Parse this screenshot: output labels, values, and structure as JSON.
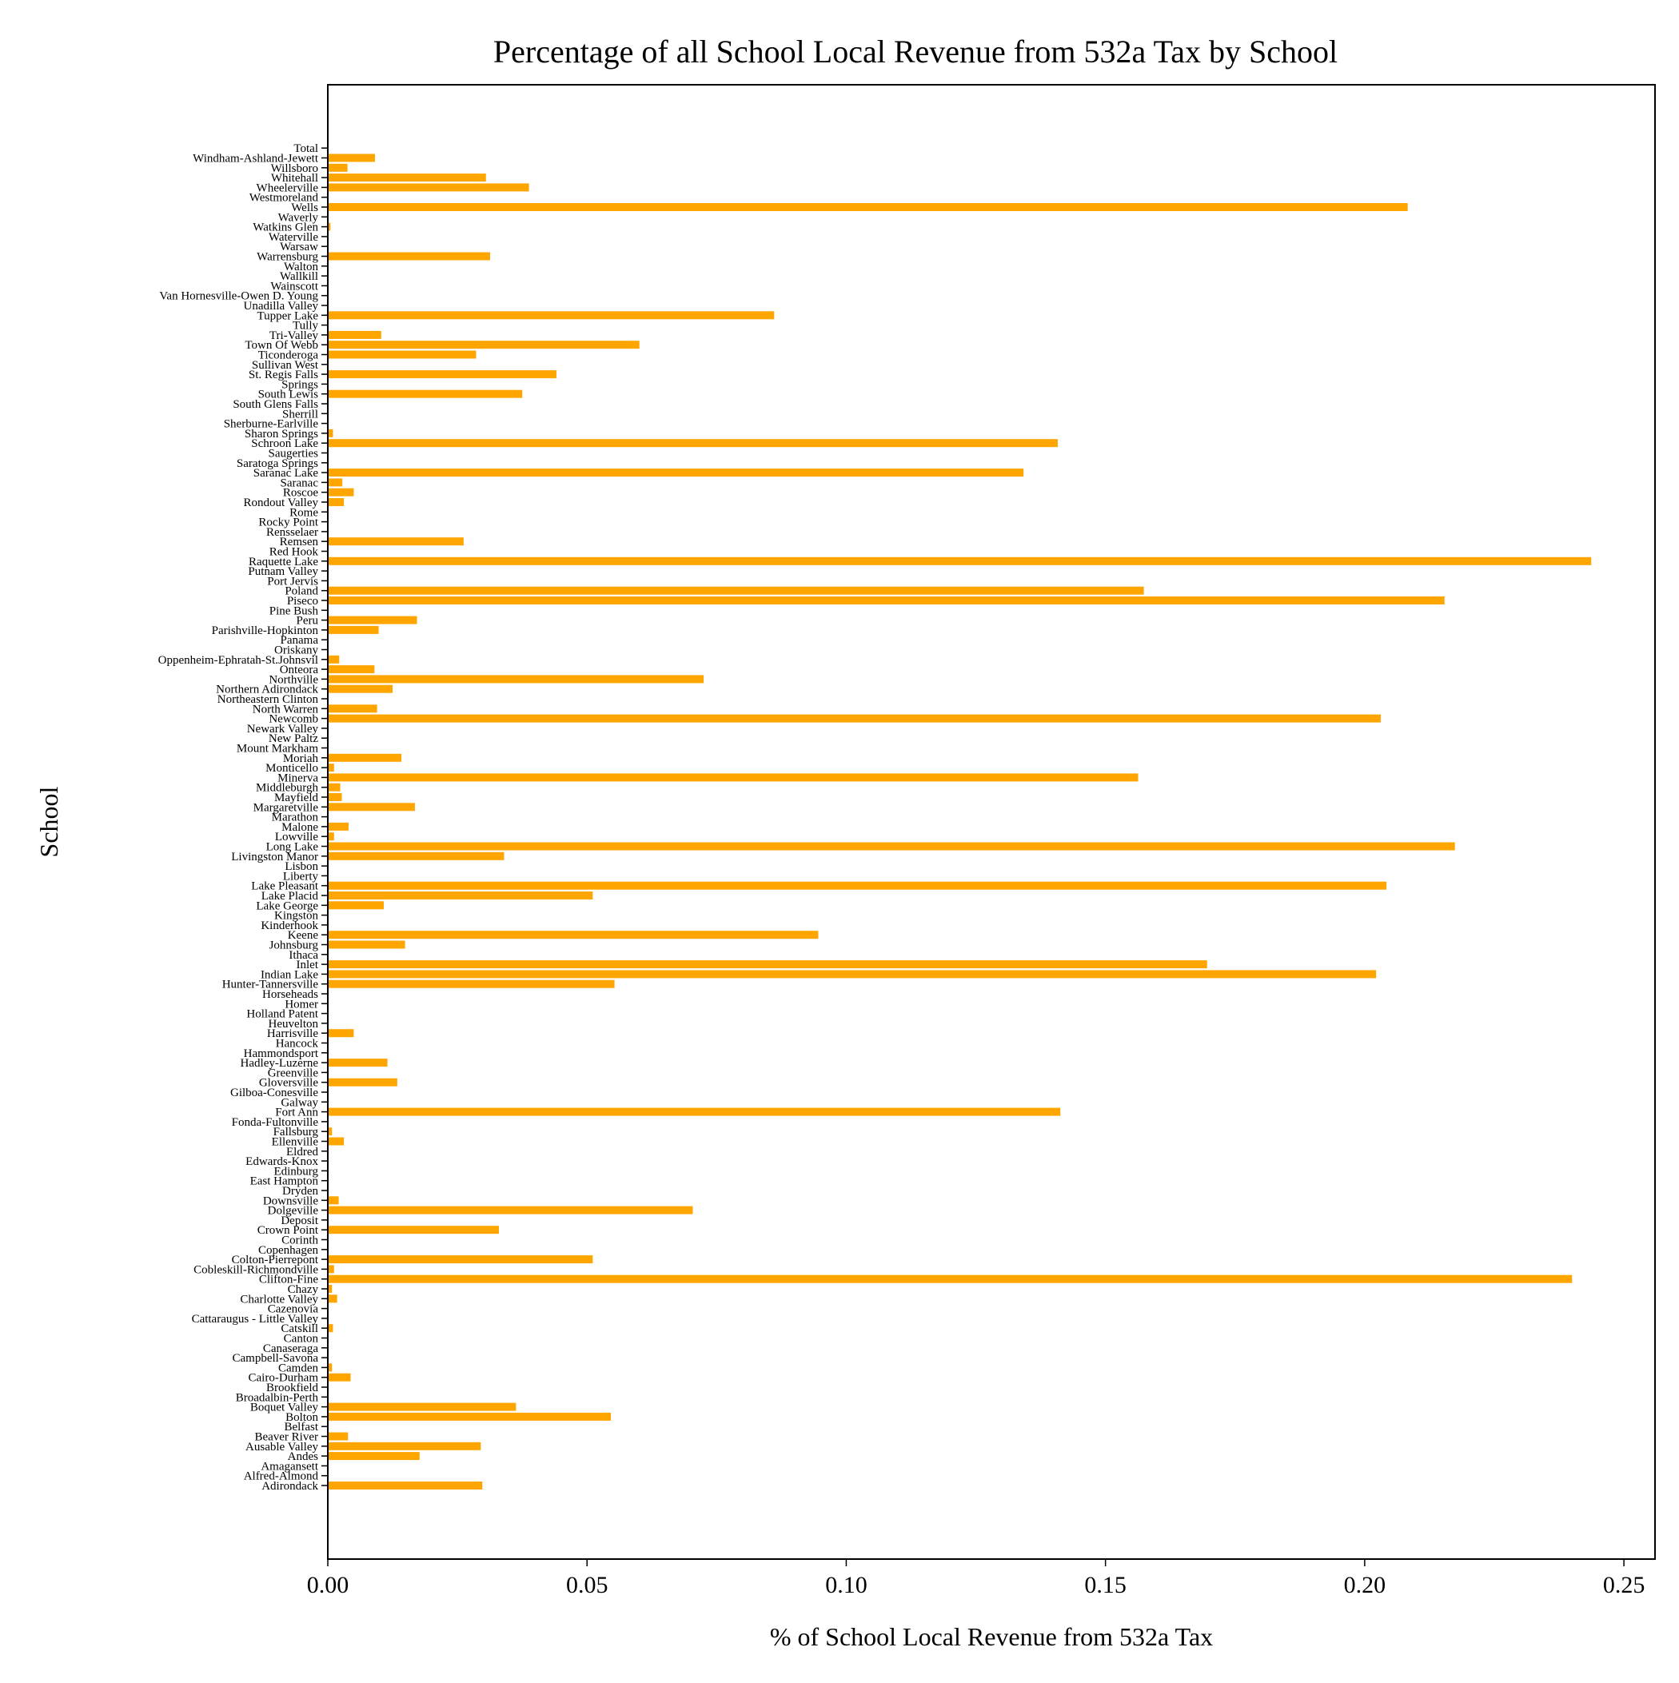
{
  "chart_data": {
    "type": "bar",
    "orientation": "horizontal",
    "title": "Percentage of all School Local Revenue from 532a Tax by School",
    "xlabel": "% of School Local Revenue from 532a Tax",
    "ylabel": "School",
    "xlim": [
      0,
      0.256
    ],
    "xticks": [
      0.0,
      0.05,
      0.1,
      0.15,
      0.2,
      0.25
    ],
    "xtick_labels": [
      "0.00",
      "0.05",
      "0.10",
      "0.15",
      "0.20",
      "0.25"
    ],
    "bar_color": "#FFA500",
    "grid": false,
    "categories": [
      "Adirondack",
      "Alfred-Almond",
      "Amagansett",
      "Andes",
      "Ausable Valley",
      "Beaver River",
      "Belfast",
      "Bolton",
      "Boquet Valley",
      "Broadalbin-Perth",
      "Brookfield",
      "Cairo-Durham",
      "Camden",
      "Campbell-Savona",
      "Canaseraga",
      "Canton",
      "Catskill",
      "Cattaraugus - Little Valley",
      "Cazenovia",
      "Charlotte Valley",
      "Chazy",
      "Clifton-Fine",
      "Cobleskill-Richmondville",
      "Colton-Pierrepont",
      "Copenhagen",
      "Corinth",
      "Crown Point",
      "Deposit",
      "Dolgeville",
      "Downsville",
      "Dryden",
      "East Hampton",
      "Edinburg",
      "Edwards-Knox",
      "Eldred",
      "Ellenville",
      "Fallsburg",
      "Fonda-Fultonville",
      "Fort Ann",
      "Galway",
      "Gilboa-Conesville",
      "Gloversville",
      "Greenville",
      "Hadley-Luzerne",
      "Hammondsport",
      "Hancock",
      "Harrisville",
      "Heuvelton",
      "Holland Patent",
      "Homer",
      "Horseheads",
      "Hunter-Tannersville",
      "Indian Lake",
      "Inlet",
      "Ithaca",
      "Johnsburg",
      "Keene",
      "Kinderhook",
      "Kingston",
      "Lake George",
      "Lake Placid",
      "Lake Pleasant",
      "Liberty",
      "Lisbon",
      "Livingston Manor",
      "Long Lake",
      "Lowville",
      "Malone",
      "Marathon",
      "Margaretville",
      "Mayfield",
      "Middleburgh",
      "Minerva",
      "Monticello",
      "Moriah",
      "Mount Markham",
      "New Paltz",
      "Newark Valley",
      "Newcomb",
      "North Warren",
      "Northeastern Clinton",
      "Northern Adirondack",
      "Northville",
      "Onteora",
      "Oppenheim-Ephratah-St.Johnsvil",
      "Oriskany",
      "Panama",
      "Parishville-Hopkinton",
      "Peru",
      "Pine Bush",
      "Piseco",
      "Poland",
      "Port Jervis",
      "Putnam Valley",
      "Raquette Lake",
      "Red Hook",
      "Remsen",
      "Rensselaer",
      "Rocky Point",
      "Rome",
      "Rondout Valley",
      "Roscoe",
      "Saranac",
      "Saranac Lake",
      "Saratoga Springs",
      "Saugerties",
      "Schroon Lake",
      "Sharon Springs",
      "Sherburne-Earlville",
      "Sherrill",
      "South Glens Falls",
      "South Lewis",
      "Springs",
      "St. Regis Falls",
      "Sullivan West",
      "Ticonderoga",
      "Town Of Webb",
      "Tri-Valley",
      "Tully",
      "Tupper Lake",
      "Unadilla Valley",
      "Van Hornesville-Owen D. Young",
      "Wainscott",
      "Wallkill",
      "Walton",
      "Warrensburg",
      "Warsaw",
      "Waterville",
      "Watkins Glen",
      "Waverly",
      "Wells",
      "Westmoreland",
      "Wheelerville",
      "Whitehall",
      "Willsboro",
      "Windham-Ashland-Jewett",
      "Total"
    ],
    "values": [
      0.0298,
      0,
      0,
      0.0177,
      0.0295,
      0.0039,
      0,
      0.0546,
      0.0363,
      0,
      0,
      0.0044,
      0.0008,
      0,
      0,
      0,
      0.001,
      0,
      0,
      0.0018,
      0.0008,
      0.24,
      0.0012,
      0.0511,
      0,
      0,
      0.033,
      0,
      0.0704,
      0.0021,
      0,
      0,
      0,
      0,
      0,
      0.0031,
      0.0008,
      0,
      0.1413,
      0,
      0,
      0.0134,
      0,
      0.0115,
      0,
      0,
      0.005,
      0,
      0,
      0,
      0,
      0.0553,
      0.2022,
      0.1696,
      0,
      0.0149,
      0.0946,
      0,
      0,
      0.0108,
      0.0511,
      0.2042,
      0,
      0,
      0.034,
      0.2174,
      0.0012,
      0.004,
      0,
      0.0168,
      0.0027,
      0.0024,
      0.1563,
      0.0012,
      0.0142,
      0,
      0,
      0,
      0.2031,
      0.0095,
      0,
      0.0125,
      0.0725,
      0.009,
      0.0022,
      0,
      0,
      0.0098,
      0.0172,
      0,
      0.2154,
      0.1574,
      0,
      0,
      0.2437,
      0,
      0.0262,
      0,
      0,
      0,
      0.0031,
      0.005,
      0.0028,
      0.1342,
      0,
      0,
      0.1408,
      0.001,
      0,
      0,
      0,
      0.0375,
      0,
      0.0441,
      0,
      0.0286,
      0.0601,
      0.0103,
      0,
      0.0861,
      0,
      0,
      0,
      0,
      0,
      0.0313,
      0,
      0,
      0.0005,
      0,
      0.2083,
      0,
      0.0388,
      0.0305,
      0.0038,
      0.0091,
      0
    ]
  }
}
